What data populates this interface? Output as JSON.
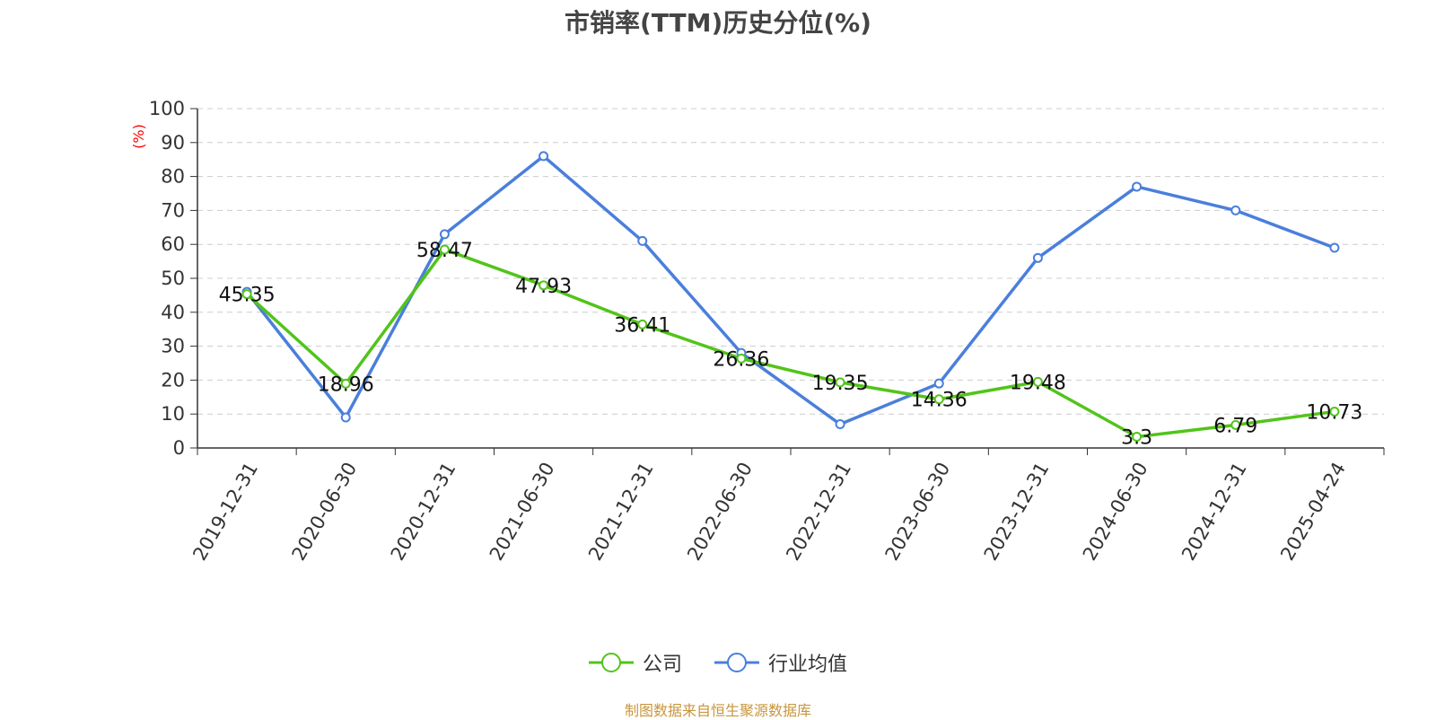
{
  "chart_data": {
    "type": "line",
    "title": "市销率(TTM)历史分位(%)",
    "ylabel": "(%)",
    "xlabel": "",
    "ylim": [
      0,
      100
    ],
    "yticks": [
      0,
      10,
      20,
      30,
      40,
      50,
      60,
      70,
      80,
      90,
      100
    ],
    "categories": [
      "2019-12-31",
      "2020-06-30",
      "2020-12-31",
      "2021-06-30",
      "2021-12-31",
      "2022-06-30",
      "2022-12-31",
      "2023-06-30",
      "2023-12-31",
      "2024-06-30",
      "2024-12-31",
      "2025-04-24"
    ],
    "grid": true,
    "legend_position": "bottom",
    "series": [
      {
        "name": "公司",
        "color": "#52c41a",
        "values": [
          45.35,
          18.96,
          58.47,
          47.93,
          36.41,
          26.36,
          19.35,
          14.36,
          19.48,
          3.3,
          6.79,
          10.73
        ],
        "data_labels": [
          "45.35",
          "18.96",
          "58.47",
          "47.93",
          "36.41",
          "26.36",
          "19.35",
          "14.36",
          "19.48",
          "3.3",
          "6.79",
          "10.73"
        ]
      },
      {
        "name": "行业均值",
        "color": "#4a7fdb",
        "values": [
          46,
          9,
          63,
          86,
          61,
          28,
          7,
          19,
          56,
          77,
          70,
          59
        ]
      }
    ]
  },
  "source": "制图数据来自恒生聚源数据库",
  "colors": {
    "ylabel": "#ff0000",
    "source": "#c8963c",
    "axis": "#333333",
    "grid": "#cccccc"
  }
}
